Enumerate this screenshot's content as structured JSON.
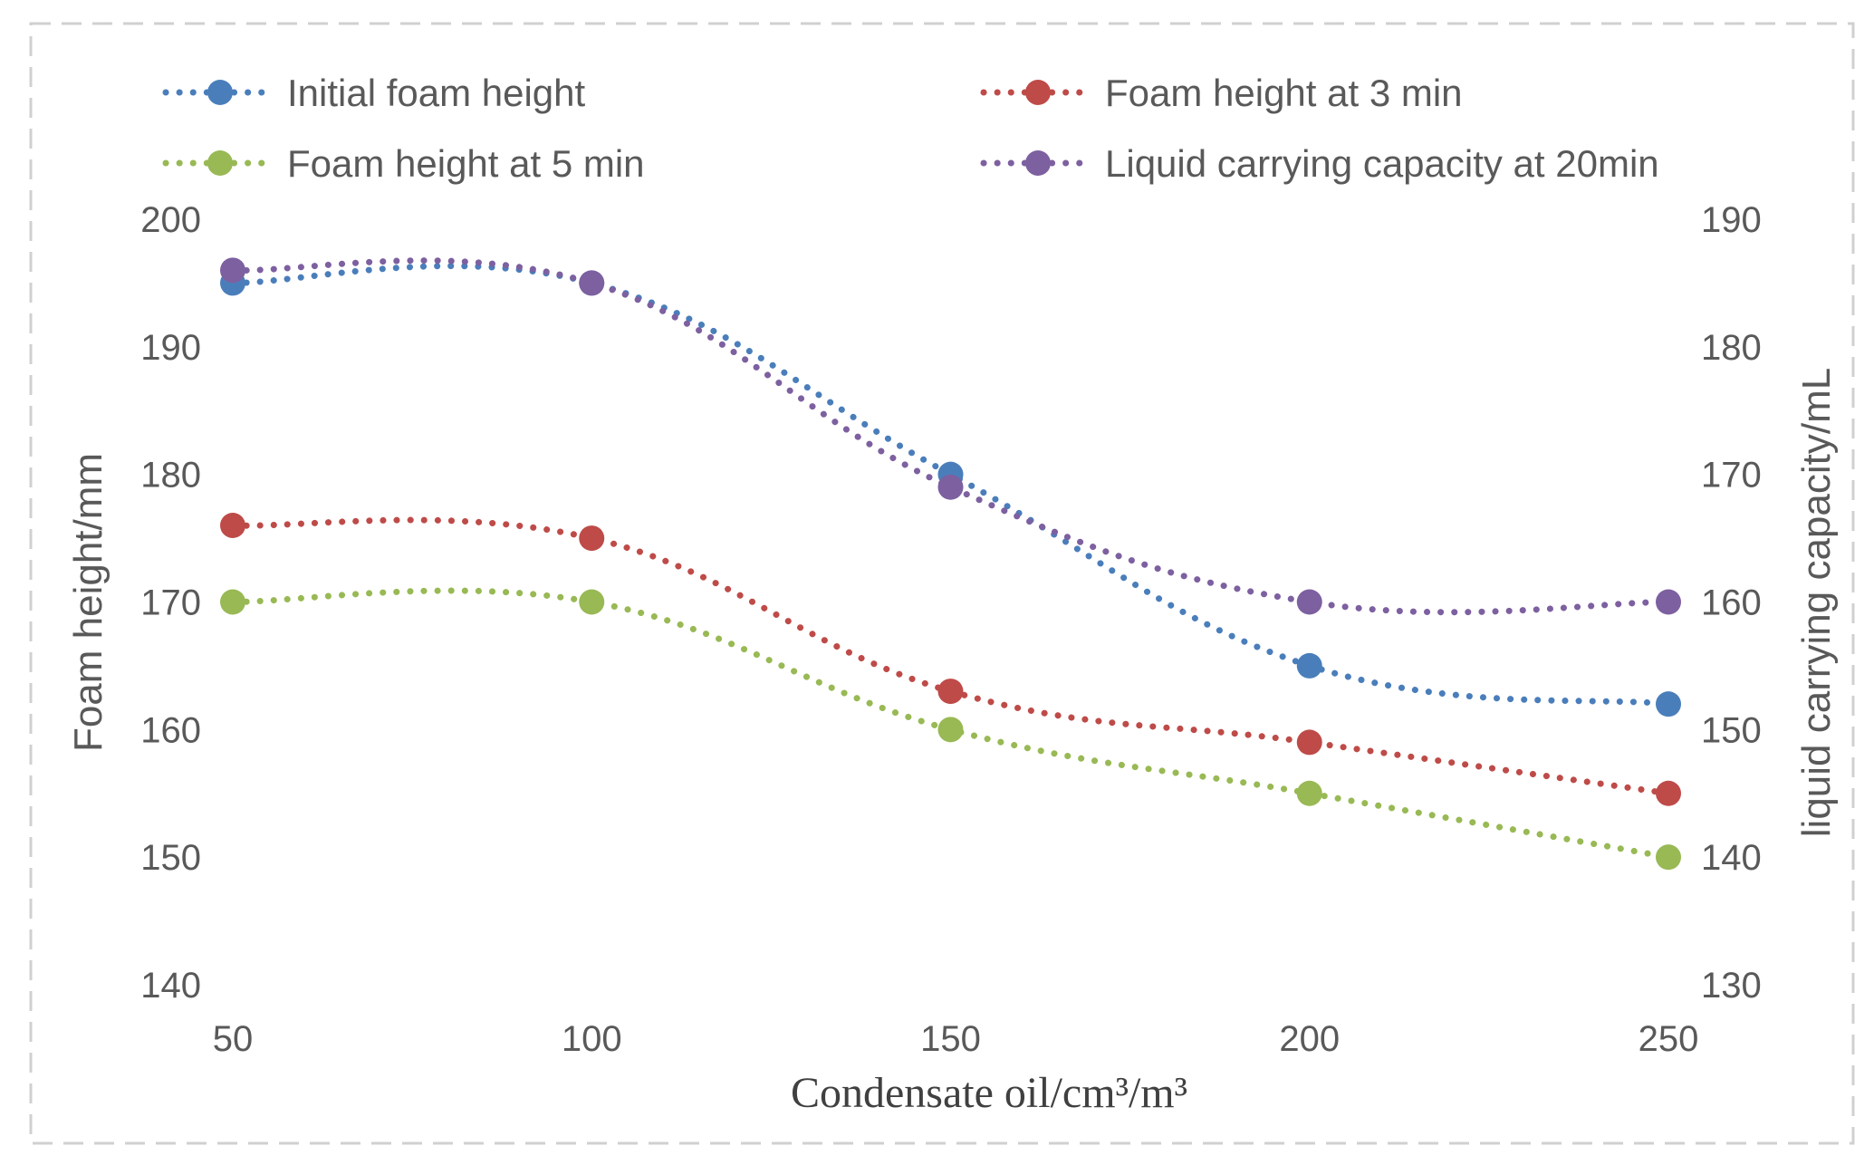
{
  "chart_data": {
    "type": "line",
    "title": "",
    "xlabel": "Condensate oil/cm³/m³",
    "ylabel": "Foam height/mm",
    "y2label": "liquid carrying capacity/mL",
    "x": [
      50,
      100,
      150,
      200,
      250
    ],
    "x_ticks": [
      "50",
      "100",
      "150",
      "200",
      "250"
    ],
    "ylim": [
      140,
      200
    ],
    "y_ticks": [
      "140",
      "150",
      "160",
      "170",
      "180",
      "190",
      "200"
    ],
    "y2lim": [
      130,
      190
    ],
    "y2_ticks": [
      "130",
      "140",
      "150",
      "160",
      "170",
      "180",
      "190"
    ],
    "grid": false,
    "legend_position": "top",
    "series": [
      {
        "name": "Initial foam height",
        "axis": "left",
        "color": "#4a7ebb",
        "values": [
          195,
          195,
          180,
          165,
          162
        ]
      },
      {
        "name": "Foam height at 3 min",
        "axis": "left",
        "color": "#be4b48",
        "values": [
          176,
          175,
          163,
          159,
          155
        ]
      },
      {
        "name": "Foam height at 5 min",
        "axis": "left",
        "color": "#98b954",
        "values": [
          170,
          170,
          160,
          155,
          150
        ]
      },
      {
        "name": "Liquid carrying capacity at 20min",
        "axis": "right",
        "color": "#7d60a0",
        "values": [
          186,
          185,
          169,
          160,
          160
        ]
      }
    ]
  }
}
